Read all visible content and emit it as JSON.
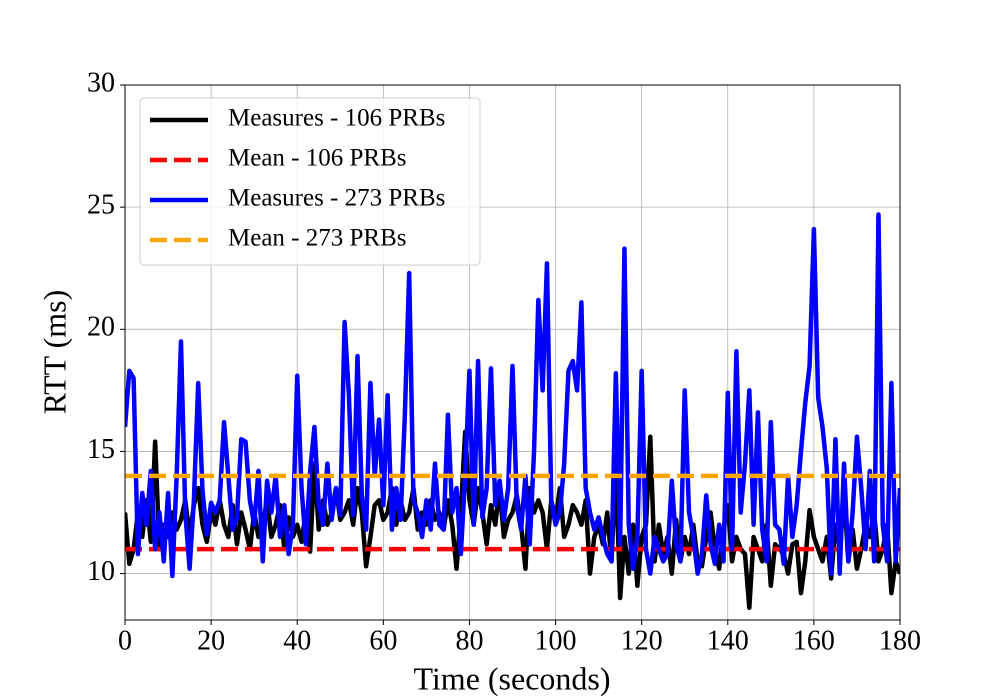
{
  "chart_data": {
    "type": "line",
    "xlabel": "Time (seconds)",
    "ylabel": "RTT (ms)",
    "xlim": [
      0,
      180
    ],
    "ylim": [
      8.1,
      30
    ],
    "xticks": [
      0,
      20,
      40,
      60,
      80,
      100,
      120,
      140,
      160,
      180
    ],
    "yticks": [
      10,
      15,
      20,
      25,
      30
    ],
    "grid": true,
    "legend": "upper left",
    "x": [
      0,
      1,
      2,
      3,
      4,
      5,
      6,
      7,
      8,
      9,
      10,
      11,
      12,
      13,
      14,
      15,
      16,
      17,
      18,
      19,
      20,
      21,
      22,
      23,
      24,
      25,
      26,
      27,
      28,
      29,
      30,
      31,
      32,
      33,
      34,
      35,
      36,
      37,
      38,
      39,
      40,
      41,
      42,
      43,
      44,
      45,
      46,
      47,
      48,
      49,
      50,
      51,
      52,
      53,
      54,
      55,
      56,
      57,
      58,
      59,
      60,
      61,
      62,
      63,
      64,
      65,
      66,
      67,
      68,
      69,
      70,
      71,
      72,
      73,
      74,
      75,
      76,
      77,
      78,
      79,
      80,
      81,
      82,
      83,
      84,
      85,
      86,
      87,
      88,
      89,
      90,
      91,
      92,
      93,
      94,
      95,
      96,
      97,
      98,
      99,
      100,
      101,
      102,
      103,
      104,
      105,
      106,
      107,
      108,
      109,
      110,
      111,
      112,
      113,
      114,
      115,
      116,
      117,
      118,
      119,
      120,
      121,
      122,
      123,
      124,
      125,
      126,
      127,
      128,
      129,
      130,
      131,
      132,
      133,
      134,
      135,
      136,
      137,
      138,
      139,
      140,
      141,
      142,
      143,
      144,
      145,
      146,
      147,
      148,
      149,
      150,
      151,
      152,
      153,
      154,
      155,
      156,
      157,
      158,
      159,
      160,
      161,
      162,
      163,
      164,
      165,
      166,
      167,
      168,
      169,
      170,
      171,
      172,
      173,
      174,
      175,
      176,
      177,
      178,
      179,
      180
    ],
    "series": [
      {
        "name": "Measures - 106 PRBs",
        "color": "#000000",
        "linestyle": "solid",
        "values": [
          12.5,
          10.4,
          11.0,
          12.5,
          11.5,
          13.0,
          11.3,
          15.4,
          11.0,
          12.0,
          11.5,
          12.5,
          11.8,
          12.2,
          13.0,
          11.5,
          12.8,
          13.5,
          12.0,
          11.3,
          12.5,
          12.0,
          13.0,
          12.0,
          11.5,
          12.8,
          11.2,
          12.5,
          11.8,
          11.0,
          12.5,
          11.5,
          12.0,
          13.0,
          11.5,
          12.0,
          12.8,
          11.0,
          12.3,
          11.5,
          12.0,
          11.3,
          12.5,
          10.9,
          14.5,
          11.8,
          13.0,
          12.0,
          12.5,
          13.5,
          12.2,
          12.5,
          13.0,
          12.0,
          13.5,
          12.5,
          10.3,
          11.5,
          12.8,
          13.0,
          12.2,
          12.5,
          13.5,
          12.0,
          13.0,
          12.2,
          12.5,
          13.5,
          11.8,
          12.5,
          12.0,
          13.0,
          12.2,
          12.5,
          11.8,
          13.0,
          12.0,
          10.2,
          12.5,
          15.8,
          13.0,
          12.0,
          13.5,
          12.5,
          11.2,
          12.8,
          12.0,
          13.5,
          11.5,
          12.2,
          12.5,
          13.2,
          12.0,
          10.2,
          13.5,
          12.5,
          13.0,
          12.5,
          11.0,
          13.0,
          12.2,
          13.5,
          11.5,
          12.0,
          12.8,
          12.5,
          12.0,
          13.0,
          10.0,
          11.5,
          12.0,
          11.2,
          12.5,
          10.5,
          14.4,
          9.0,
          11.5,
          10.0,
          12.0,
          9.5,
          11.5,
          12.0,
          15.6,
          10.5,
          12.0,
          10.8,
          11.5,
          10.0,
          12.2,
          10.5,
          11.5,
          10.8,
          12.0,
          10.5,
          10.3,
          11.5,
          12.5,
          11.0,
          10.2,
          11.8,
          12.8,
          10.5,
          11.5,
          11.0,
          10.8,
          8.6,
          11.5,
          11.0,
          10.5,
          12.0,
          9.5,
          11.2,
          11.0,
          10.8,
          10.0,
          11.2,
          11.3,
          9.2,
          10.5,
          12.6,
          11.5,
          11.0,
          10.5,
          11.5,
          9.8,
          12.0,
          11.0,
          13.3,
          10.5,
          11.8,
          10.2,
          11.0,
          12.0,
          11.5,
          12.5,
          10.5,
          11.0,
          12.0,
          9.2,
          10.5,
          10.0
        ]
      },
      {
        "name": "Mean - 106 PRBs",
        "color": "#ff0000",
        "linestyle": "dashed",
        "x": [
          0,
          180
        ],
        "values": [
          11,
          11
        ]
      },
      {
        "name": "Measures - 273 PRBs",
        "color": "#0000ff",
        "linestyle": "solid",
        "values": [
          16.0,
          18.3,
          18.0,
          10.8,
          13.3,
          12.0,
          14.2,
          11.0,
          12.5,
          10.5,
          13.3,
          9.9,
          14.0,
          19.5,
          12.5,
          10.2,
          13.0,
          17.8,
          13.4,
          11.6,
          12.9,
          12.5,
          13.0,
          16.2,
          14.0,
          11.8,
          12.3,
          15.5,
          15.4,
          13.0,
          12.0,
          14.2,
          10.5,
          13.8,
          12.5,
          14.0,
          11.5,
          12.8,
          10.8,
          12.0,
          18.1,
          13.5,
          11.2,
          14.2,
          16.0,
          12.8,
          12.0,
          14.5,
          12.2,
          13.5,
          12.4,
          20.3,
          17.3,
          12.4,
          18.9,
          13.2,
          11.8,
          17.8,
          14.0,
          16.3,
          12.8,
          17.3,
          11.8,
          13.5,
          12.2,
          16.5,
          22.3,
          13.0,
          12.5,
          11.5,
          13.0,
          11.8,
          14.5,
          12.0,
          11.8,
          16.5,
          12.5,
          13.5,
          10.8,
          14.0,
          18.3,
          12.0,
          18.7,
          12.3,
          13.5,
          18.4,
          12.8,
          13.8,
          12.2,
          13.5,
          18.5,
          12.8,
          11.8,
          14.0,
          11.2,
          15.0,
          21.2,
          17.5,
          22.7,
          13.0,
          12.0,
          12.5,
          14.5,
          18.3,
          18.7,
          17.5,
          21.1,
          13.5,
          12.5,
          11.8,
          12.3,
          11.5,
          10.8,
          10.5,
          18.2,
          11.2,
          23.3,
          12.0,
          10.2,
          11.5,
          18.3,
          11.0,
          10.0,
          11.5,
          11.0,
          10.5,
          10.8,
          13.8,
          11.2,
          10.5,
          17.5,
          12.5,
          11.5,
          10.0,
          10.8,
          13.2,
          11.2,
          10.4,
          12.0,
          10.5,
          17.4,
          11.0,
          19.1,
          12.5,
          14.5,
          17.5,
          12.0,
          16.6,
          11.8,
          10.5,
          16.2,
          12.0,
          11.8,
          10.4,
          14.0,
          11.5,
          12.8,
          15.0,
          17.0,
          18.5,
          24.1,
          17.2,
          16.0,
          14.3,
          10.0,
          15.5,
          10.0,
          14.5,
          10.5,
          12.5,
          15.6,
          13.5,
          11.0,
          14.2,
          10.5,
          24.7,
          12.0,
          10.5,
          17.8,
          10.5,
          13.5
        ]
      },
      {
        "name": "Mean - 273 PRBs",
        "color": "#ffa500",
        "linestyle": "dashed",
        "x": [
          0,
          180
        ],
        "values": [
          14,
          14
        ]
      }
    ]
  }
}
